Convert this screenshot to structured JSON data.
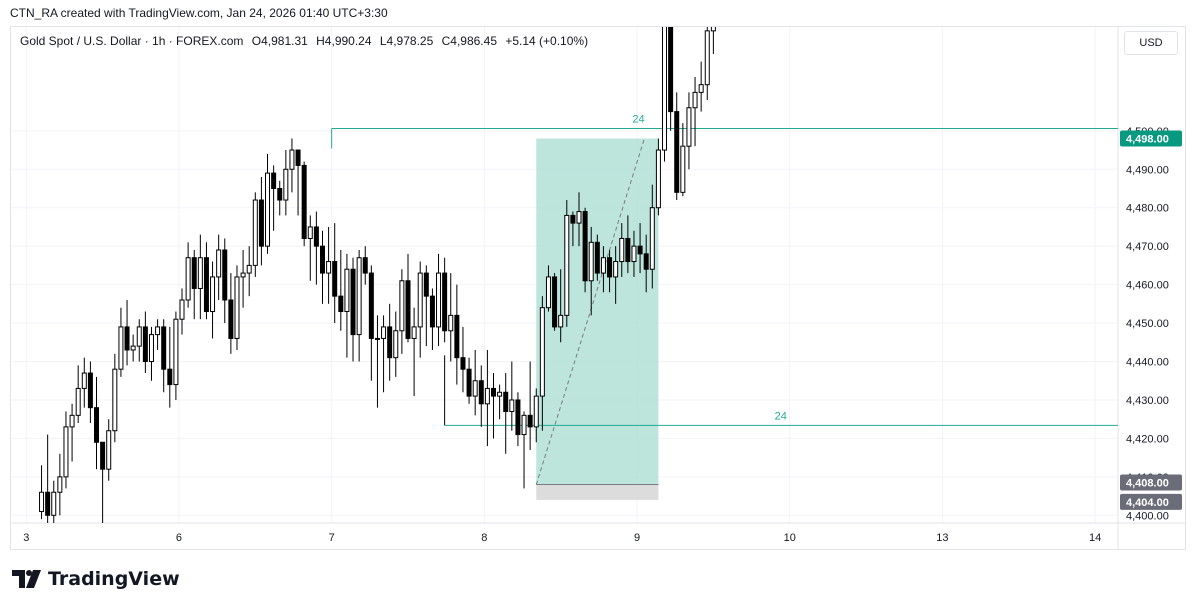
{
  "caption": "CTN_RA created with TradingView.com, Jan 24, 2026 01:40 UTC+3:30",
  "header": {
    "symbol": "Gold Spot / U.S. Dollar · 1h · FOREX.com",
    "open": "O4,981.31",
    "high": "H4,990.24",
    "low": "L4,978.25",
    "close": "C4,986.45",
    "change": "+5.14 (+0.10%)"
  },
  "currency_button": "USD",
  "brand": {
    "name": "TradingView",
    "logo_icon": "tradingview-logo-icon"
  },
  "colors": {
    "up_candle_fill": "#ffffff",
    "down_candle_fill": "#000000",
    "candle_outline": "#000000",
    "range_line": "#22ab94",
    "target_zone": "#b2e0d6",
    "stop_zone": "#dcdcdc",
    "price_badge": "#089981",
    "grid": "#f0f3fa"
  },
  "chart_data": {
    "type": "candlestick",
    "price_axis_ticks": [
      "4,400.00",
      "4,410.00",
      "4,420.00",
      "4,430.00",
      "4,440.00",
      "4,450.00",
      "4,460.00",
      "4,470.00",
      "4,480.00",
      "4,490.00",
      "4,500.00"
    ],
    "tick_values": [
      4400,
      4410,
      4420,
      4430,
      4440,
      4450,
      4460,
      4470,
      4480,
      4490,
      4500
    ],
    "ylim": [
      4398,
      4527
    ],
    "time_axis_labels": [
      {
        "label": "3",
        "t": 0
      },
      {
        "label": "6",
        "t": 1
      },
      {
        "label": "7",
        "t": 2
      },
      {
        "label": "8",
        "t": 3
      },
      {
        "label": "9",
        "t": 4
      },
      {
        "label": "10",
        "t": 5
      },
      {
        "label": "13",
        "t": 6
      },
      {
        "label": "14",
        "t": 7
      }
    ],
    "xlim": [
      -0.1,
      7.15
    ],
    "candles": [
      [
        0.1,
        4401,
        4413,
        4399,
        4406
      ],
      [
        0.14,
        4406,
        4421,
        4398,
        4400
      ],
      [
        0.18,
        4400,
        4409,
        4398,
        4406
      ],
      [
        0.22,
        4406,
        4416,
        4400,
        4410
      ],
      [
        0.26,
        4410,
        4427,
        4407,
        4423
      ],
      [
        0.3,
        4423,
        4429,
        4414,
        4426
      ],
      [
        0.34,
        4426,
        4439,
        4424,
        4433
      ],
      [
        0.38,
        4433,
        4441,
        4428,
        4437
      ],
      [
        0.42,
        4437,
        4440,
        4424,
        4428
      ],
      [
        0.46,
        4428,
        4436,
        4412,
        4419
      ],
      [
        0.5,
        4419,
        4418,
        4398,
        4412
      ],
      [
        0.54,
        4412,
        4425,
        4409,
        4422
      ],
      [
        0.58,
        4422,
        4442,
        4419,
        4438
      ],
      [
        0.62,
        4438,
        4454,
        4436,
        4449
      ],
      [
        0.66,
        4449,
        4456,
        4439,
        4443
      ],
      [
        0.7,
        4443,
        4447,
        4440,
        4444
      ],
      [
        0.74,
        4444,
        4451,
        4440,
        4449
      ],
      [
        0.78,
        4449,
        4453,
        4437,
        4440
      ],
      [
        0.82,
        4440,
        4449,
        4435,
        4447
      ],
      [
        0.86,
        4447,
        4451,
        4443,
        4449
      ],
      [
        0.9,
        4449,
        4451,
        4432,
        4438
      ],
      [
        0.94,
        4438,
        4449,
        4428,
        4434
      ],
      [
        0.98,
        4434,
        4453,
        4430,
        4451
      ],
      [
        1.02,
        4451,
        4459,
        4447,
        4456
      ],
      [
        1.06,
        4456,
        4471,
        4454,
        4467
      ],
      [
        1.1,
        4467,
        4469,
        4451,
        4459
      ],
      [
        1.14,
        4459,
        4473,
        4451,
        4467
      ],
      [
        1.18,
        4467,
        4471,
        4451,
        4453
      ],
      [
        1.22,
        4453,
        4466,
        4446,
        4462
      ],
      [
        1.26,
        4462,
        4473,
        4456,
        4469
      ],
      [
        1.3,
        4469,
        4472,
        4450,
        4456
      ],
      [
        1.34,
        4456,
        4463,
        4442,
        4446
      ],
      [
        1.38,
        4446,
        4465,
        4443,
        4462
      ],
      [
        1.42,
        4462,
        4469,
        4454,
        4463
      ],
      [
        1.46,
        4463,
        4470,
        4457,
        4465
      ],
      [
        1.5,
        4465,
        4484,
        4462,
        4482
      ],
      [
        1.54,
        4482,
        4488,
        4465,
        4470
      ],
      [
        1.58,
        4470,
        4494,
        4468,
        4489
      ],
      [
        1.62,
        4489,
        4491,
        4474,
        4485
      ],
      [
        1.66,
        4485,
        4487,
        4478,
        4482
      ],
      [
        1.7,
        4482,
        4495,
        4478,
        4490
      ],
      [
        1.74,
        4490,
        4498,
        4484,
        4495
      ],
      [
        1.78,
        4495,
        4494,
        4478,
        4491
      ],
      [
        1.82,
        4491,
        4492,
        4470,
        4472
      ],
      [
        1.86,
        4472,
        4478,
        4461,
        4475
      ],
      [
        1.9,
        4475,
        4479,
        4460,
        4470
      ],
      [
        1.94,
        4470,
        4474,
        4455,
        4463
      ],
      [
        1.98,
        4463,
        4475,
        4455,
        4466
      ],
      [
        2.02,
        4466,
        4476,
        4450,
        4457
      ],
      [
        2.06,
        4457,
        4469,
        4448,
        4453
      ],
      [
        2.1,
        4453,
        4468,
        4441,
        4464
      ],
      [
        2.14,
        4464,
        4467,
        4440,
        4447
      ],
      [
        2.18,
        4447,
        4469,
        4440,
        4467
      ],
      [
        2.22,
        4467,
        4470,
        4460,
        4463
      ],
      [
        2.26,
        4463,
        4465,
        4435,
        4446
      ],
      [
        2.3,
        4446,
        4452,
        4428,
        4446
      ],
      [
        2.34,
        4446,
        4452,
        4432,
        4449
      ],
      [
        2.38,
        4449,
        4455,
        4435,
        4441
      ],
      [
        2.42,
        4441,
        4453,
        4436,
        4448
      ],
      [
        2.46,
        4448,
        4464,
        4442,
        4461
      ],
      [
        2.5,
        4461,
        4468,
        4445,
        4446
      ],
      [
        2.54,
        4446,
        4454,
        4431,
        4449
      ],
      [
        2.58,
        4449,
        4466,
        4441,
        4463
      ],
      [
        2.62,
        4463,
        4465,
        4444,
        4457
      ],
      [
        2.66,
        4457,
        4459,
        4443,
        4449
      ],
      [
        2.7,
        4449,
        4468,
        4444,
        4463
      ],
      [
        2.74,
        4463,
        4467,
        4445,
        4448
      ],
      [
        2.78,
        4448,
        4463,
        4440,
        4452
      ],
      [
        2.82,
        4452,
        4460,
        4434,
        4441
      ],
      [
        2.86,
        4441,
        4449,
        4432,
        4438
      ],
      [
        2.9,
        4438,
        4441,
        4429,
        4431
      ],
      [
        2.94,
        4431,
        4443,
        4426,
        4435
      ],
      [
        2.98,
        4435,
        4439,
        4423,
        4429
      ],
      [
        3.02,
        4429,
        4443,
        4418,
        4433
      ],
      [
        3.06,
        4433,
        4437,
        4420,
        4431
      ],
      [
        3.1,
        4431,
        4434,
        4425,
        4432
      ],
      [
        3.14,
        4432,
        4437,
        4416,
        4427
      ],
      [
        3.18,
        4427,
        4440,
        4422,
        4430
      ],
      [
        3.22,
        4430,
        4432,
        4418,
        4421
      ],
      [
        3.26,
        4421,
        4427,
        4407,
        4426
      ],
      [
        3.3,
        4426,
        4440,
        4417,
        4423
      ],
      [
        3.34,
        4423,
        4433,
        4419,
        4431
      ],
      [
        3.38,
        4431,
        4457,
        4422,
        4454
      ],
      [
        3.42,
        4454,
        4465,
        4453,
        4462
      ],
      [
        3.46,
        4462,
        4463,
        4448,
        4449
      ],
      [
        3.5,
        4449,
        4464,
        4445,
        4452
      ],
      [
        3.54,
        4452,
        4482,
        4449,
        4478
      ],
      [
        3.58,
        4478,
        4479,
        4470,
        4476
      ],
      [
        3.62,
        4476,
        4484,
        4470,
        4479
      ],
      [
        3.66,
        4479,
        4480,
        4458,
        4461
      ],
      [
        3.7,
        4461,
        4475,
        4452,
        4471
      ],
      [
        3.74,
        4471,
        4473,
        4461,
        4463
      ],
      [
        3.78,
        4463,
        4470,
        4458,
        4467
      ],
      [
        3.82,
        4467,
        4469,
        4458,
        4462
      ],
      [
        3.86,
        4462,
        4470,
        4455,
        4466
      ],
      [
        3.9,
        4466,
        4476,
        4462,
        4472
      ],
      [
        3.94,
        4472,
        4478,
        4463,
        4466
      ],
      [
        3.98,
        4466,
        4474,
        4462,
        4470
      ],
      [
        4.02,
        4470,
        4476,
        4463,
        4468
      ],
      [
        4.06,
        4468,
        4473,
        4458,
        4464
      ],
      [
        4.1,
        4464,
        4486,
        4459,
        4480
      ],
      [
        4.14,
        4480,
        4498,
        4478,
        4495
      ],
      [
        4.18,
        4495,
        4532,
        4492,
        4530
      ],
      [
        4.22,
        4530,
        4532,
        4500,
        4505
      ],
      [
        4.26,
        4505,
        4510,
        4482,
        4484
      ],
      [
        4.3,
        4484,
        4502,
        4483,
        4496
      ],
      [
        4.34,
        4496,
        4510,
        4490,
        4506
      ],
      [
        4.38,
        4506,
        4514,
        4496,
        4510
      ],
      [
        4.42,
        4510,
        4518,
        4505,
        4512
      ],
      [
        4.46,
        4512,
        4530,
        4508,
        4526
      ],
      [
        4.5,
        4526,
        4532,
        4520,
        4530
      ]
    ],
    "annotations": {
      "upper_line": {
        "price": 4500.6,
        "t_start": 2.0,
        "label": "24"
      },
      "lower_line": {
        "price": 4423.4,
        "t_start": 2.74,
        "label": "24"
      },
      "target_zone": {
        "t_start": 3.34,
        "t_end": 4.14,
        "price_top": 4498,
        "price_bottom": 4408,
        "label": "4,498.00"
      },
      "stop_zone": {
        "t_start": 3.34,
        "t_end": 4.14,
        "price_top": 4408,
        "price_bottom": 4404
      },
      "entry_label": "4,408.00",
      "stop_label": "4,404.00"
    },
    "grid": true
  }
}
